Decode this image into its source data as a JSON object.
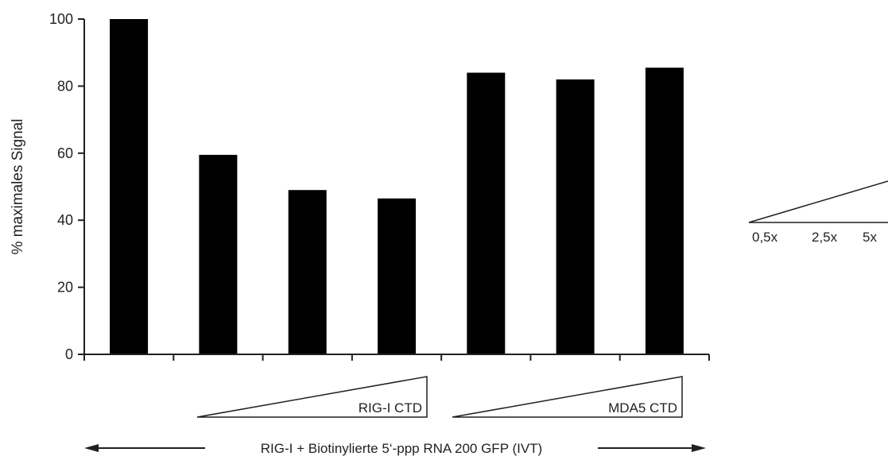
{
  "chart_data": {
    "type": "bar",
    "ylabel": "% maximales Signal",
    "ylim": [
      0,
      100
    ],
    "yticks": [
      0,
      20,
      40,
      60,
      80,
      100
    ],
    "values": [
      100,
      59.5,
      49,
      46.5,
      84,
      82,
      85.5
    ],
    "bar_color": "#000000",
    "grid": false,
    "legend": "none",
    "groups": [
      {
        "label": "RIG-I CTD",
        "bars": [
          1,
          2,
          3
        ]
      },
      {
        "label": "MDA5 CTD",
        "bars": [
          4,
          5,
          6
        ]
      }
    ],
    "bottom_label": "RIG-I + Biotinylierte 5‘-ppp RNA 200 GFP (IVT)",
    "concentration_key": [
      "0,5x",
      "2,5x",
      "5x"
    ]
  }
}
